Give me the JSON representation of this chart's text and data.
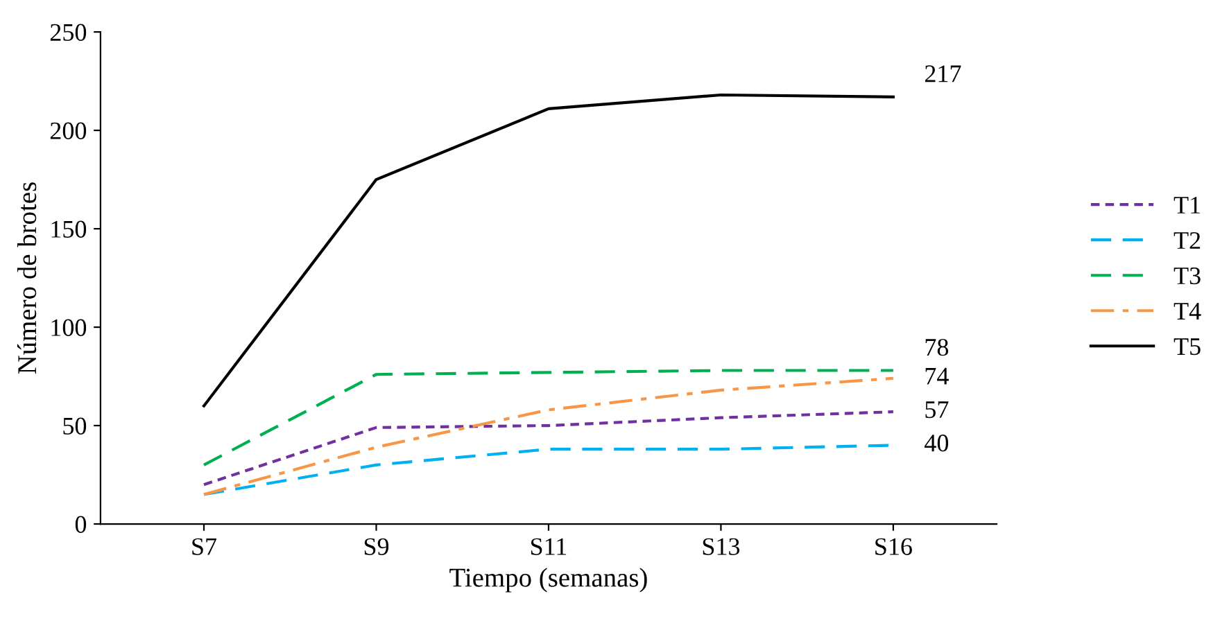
{
  "chart_data": {
    "type": "line",
    "xlabel": "Tiempo (semanas)",
    "ylabel": "Número de brotes",
    "categories": [
      "S7",
      "S9",
      "S11",
      "S13",
      "S16"
    ],
    "ylim": [
      0,
      250
    ],
    "yticks": [
      0,
      50,
      100,
      150,
      200,
      250
    ],
    "grid": false,
    "legend": "right",
    "marker": "none",
    "series": [
      {
        "name": "T1",
        "color": "#7030a0",
        "line_style": "dotted",
        "values": [
          20,
          49,
          50,
          54,
          57
        ],
        "value_labels": [
          null,
          null,
          null,
          null,
          "57"
        ]
      },
      {
        "name": "T2",
        "color": "#00b0f0",
        "line_style": "dashed",
        "values": [
          15,
          30,
          38,
          38,
          40
        ],
        "value_labels": [
          null,
          null,
          null,
          null,
          "40"
        ]
      },
      {
        "name": "T3",
        "color": "#00b050",
        "line_style": "dashed",
        "values": [
          30,
          76,
          77,
          78,
          78
        ],
        "value_labels": [
          null,
          null,
          null,
          null,
          "78"
        ]
      },
      {
        "name": "T4",
        "color": "#f79646",
        "line_style": "dashdot",
        "values": [
          15,
          39,
          58,
          68,
          74
        ],
        "value_labels": [
          null,
          null,
          null,
          null,
          "74"
        ]
      },
      {
        "name": "T5",
        "color": "#000000",
        "line_style": "solid",
        "values": [
          60,
          175,
          211,
          218,
          217
        ],
        "value_labels": [
          null,
          null,
          null,
          null,
          "217"
        ]
      }
    ]
  }
}
